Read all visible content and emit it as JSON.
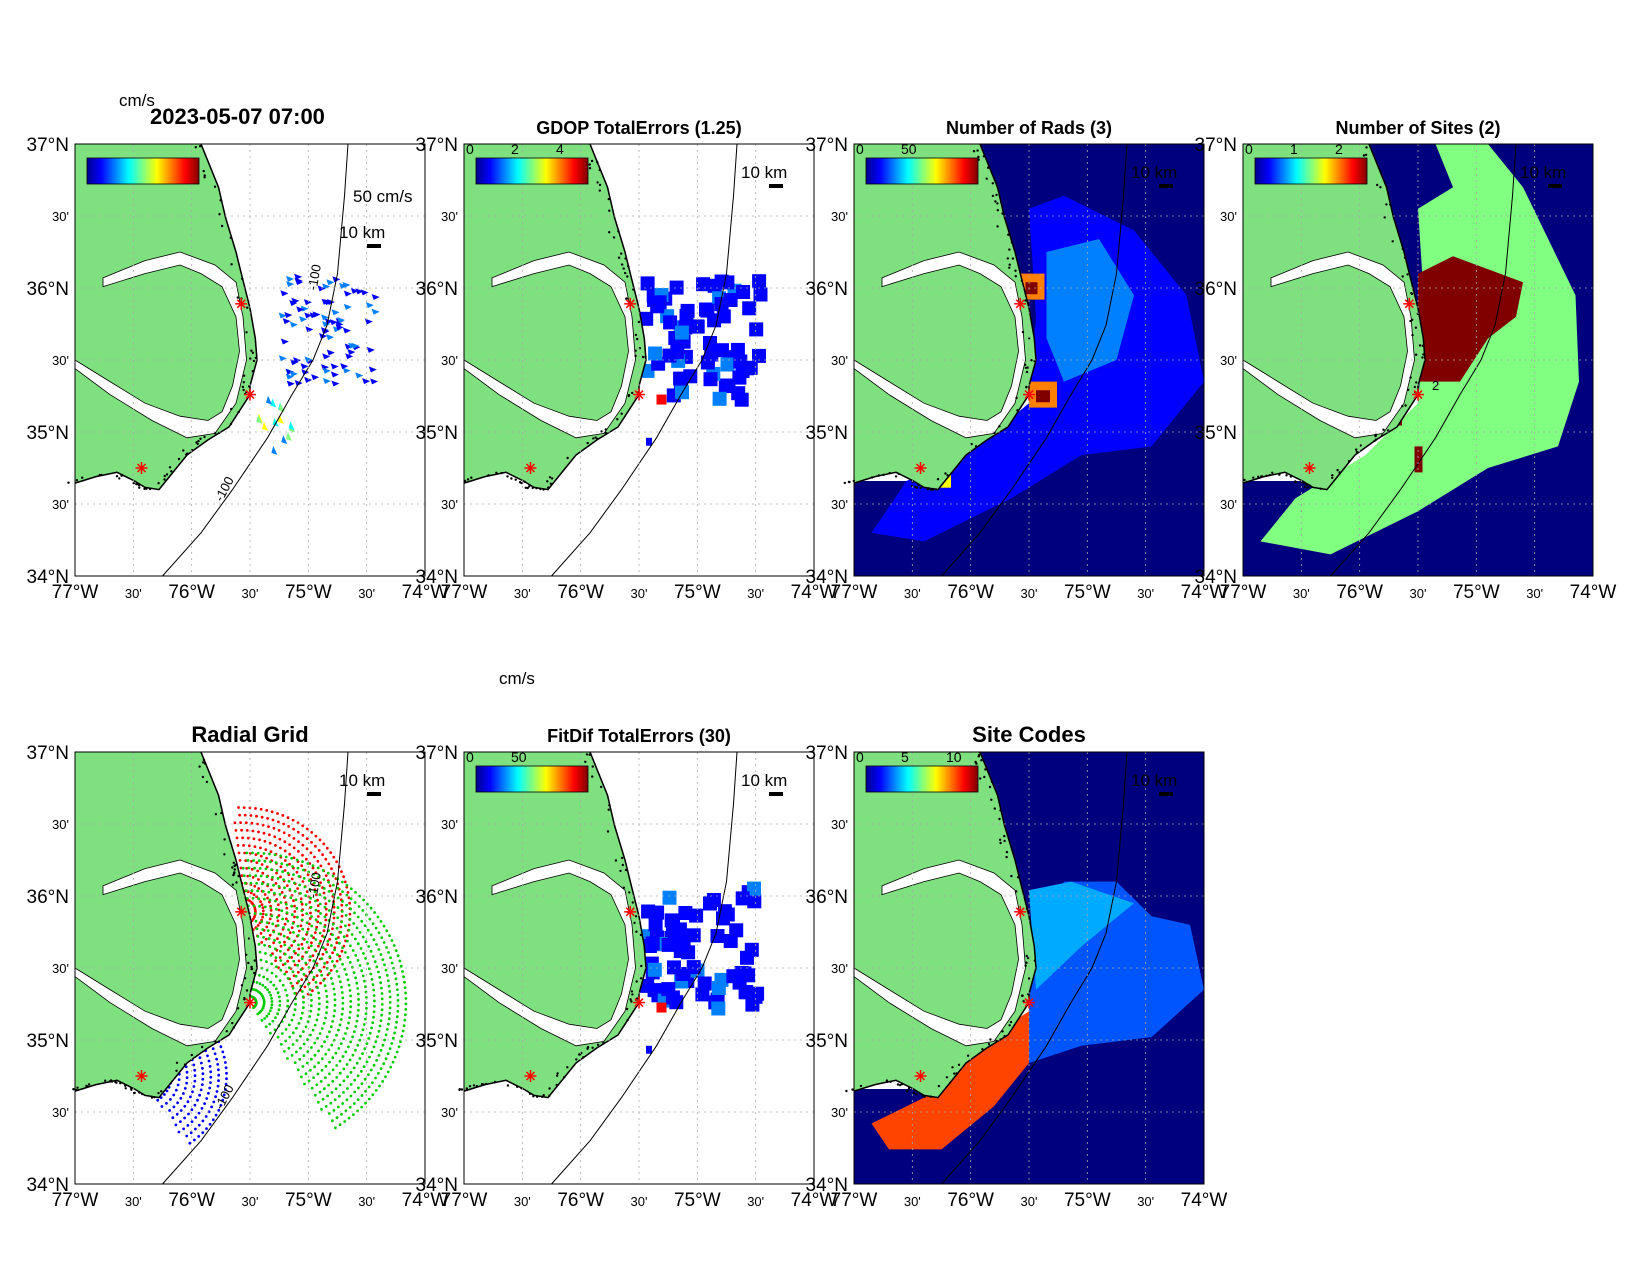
{
  "figure": {
    "timestamp": "2023-05-07 07:00",
    "panels": [
      {
        "id": "vectors",
        "title": "",
        "units": "cm/s",
        "cb_ticks": [],
        "scale_arrow": "50 cm/s",
        "scalebar": "10 km",
        "background": "white"
      },
      {
        "id": "gdop",
        "title": "GDOP TotalErrors (1.25)",
        "units": "",
        "cb_ticks": [
          "0",
          "2",
          "4"
        ],
        "scalebar": "10 km",
        "background": "white"
      },
      {
        "id": "nrads",
        "title": "Number of Rads (3)",
        "units": "",
        "cb_ticks": [
          "0",
          "50"
        ],
        "scalebar": "10 km",
        "background": "navy"
      },
      {
        "id": "nsites",
        "title": "Number of Sites (2)",
        "units": "",
        "cb_ticks": [
          "0",
          "1",
          "2"
        ],
        "scalebar": "10 km",
        "background": "navy"
      },
      {
        "id": "radgrid",
        "title": "Radial Grid",
        "units": "",
        "cb_ticks": [],
        "scalebar": "10 km",
        "background": "white"
      },
      {
        "id": "fitdif",
        "title": "FitDif TotalErrors (30)",
        "units": "cm/s",
        "cb_ticks": [
          "0",
          "50"
        ],
        "scalebar": "10 km",
        "background": "white"
      },
      {
        "id": "sitecodes",
        "title": "Site Codes",
        "units": "",
        "cb_ticks": [
          "0",
          "5",
          "10"
        ],
        "scalebar": "10 km",
        "background": "navy"
      }
    ],
    "lat_labels": [
      "37°N",
      "30'",
      "36°N",
      "30'",
      "35°N",
      "30'",
      "34°N"
    ],
    "lon_labels": [
      "77°W",
      "30'",
      "76°W",
      "30'",
      "75°W",
      "30'",
      "74°W"
    ],
    "contour_label": "-100",
    "contour_label_alt": "-3",
    "site_label": "2",
    "colors": {
      "land": "#7fe07f",
      "navy": "#00007f",
      "jet": [
        "#00008f",
        "#0000ff",
        "#0080ff",
        "#00ffff",
        "#80ff80",
        "#ffff00",
        "#ff8000",
        "#ff0000",
        "#800000"
      ],
      "site_marker": "#ff0000",
      "grid_red": "#ff0000",
      "grid_green": "#00cc00",
      "grid_blue": "#0000ff",
      "site_code_light": "#00aaff",
      "site_code_mid": "#0055ff",
      "site_code_orange": "#ff4400",
      "sites_light": "#80ff80",
      "sites_dark": "#800000"
    }
  }
}
